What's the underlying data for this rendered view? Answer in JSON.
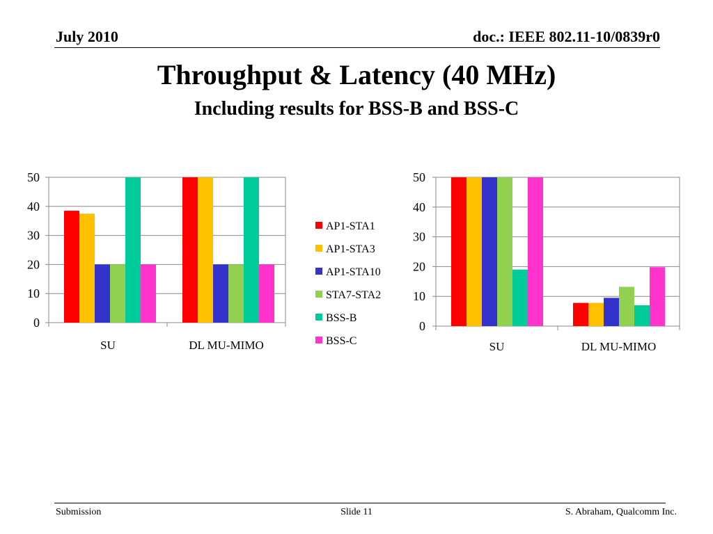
{
  "header": {
    "date": "July 2010",
    "doc": "doc.: IEEE 802.11-10/0839r0"
  },
  "title": "Throughput & Latency (40 MHz)",
  "subtitle": "Including results for BSS-B and BSS-C",
  "footer": {
    "left": "Submission",
    "center": "Slide 11",
    "right": "S. Abraham, Qualcomm Inc."
  },
  "colors": {
    "AP1-STA1": "#ff0000",
    "AP1-STA3": "#ffc000",
    "AP1-STA10": "#3333cc",
    "STA7-STA2": "#92d050",
    "BSS-B": "#00cc99",
    "BSS-C": "#ff33cc"
  },
  "chart_data": [
    {
      "type": "bar",
      "categories": [
        "SU",
        "DL MU-MIMO"
      ],
      "ylim": [
        0,
        50
      ],
      "yticks": [
        0,
        10,
        20,
        30,
        40,
        50
      ],
      "grid": true,
      "legend": "right",
      "series": [
        {
          "name": "AP1-STA1",
          "values": [
            38.5,
            50
          ]
        },
        {
          "name": "AP1-STA3",
          "values": [
            37.5,
            50
          ]
        },
        {
          "name": "AP1-STA10",
          "values": [
            20,
            20
          ]
        },
        {
          "name": "STA7-STA2",
          "values": [
            20,
            20
          ]
        },
        {
          "name": "BSS-B",
          "values": [
            50,
            50
          ]
        },
        {
          "name": "BSS-C",
          "values": [
            20,
            20
          ]
        }
      ]
    },
    {
      "type": "bar",
      "categories": [
        "SU",
        "DL MU-MIMO"
      ],
      "ylim": [
        0,
        50
      ],
      "yticks": [
        0,
        10,
        20,
        30,
        40,
        50
      ],
      "grid": true,
      "legend": "none",
      "series": [
        {
          "name": "AP1-STA1",
          "values": [
            50,
            7.8
          ]
        },
        {
          "name": "AP1-STA3",
          "values": [
            50,
            7.8
          ]
        },
        {
          "name": "AP1-STA10",
          "values": [
            50,
            9.5
          ]
        },
        {
          "name": "STA7-STA2",
          "values": [
            50,
            13.2
          ]
        },
        {
          "name": "BSS-B",
          "values": [
            19,
            7
          ]
        },
        {
          "name": "BSS-C",
          "values": [
            50,
            19.8
          ]
        }
      ]
    }
  ]
}
